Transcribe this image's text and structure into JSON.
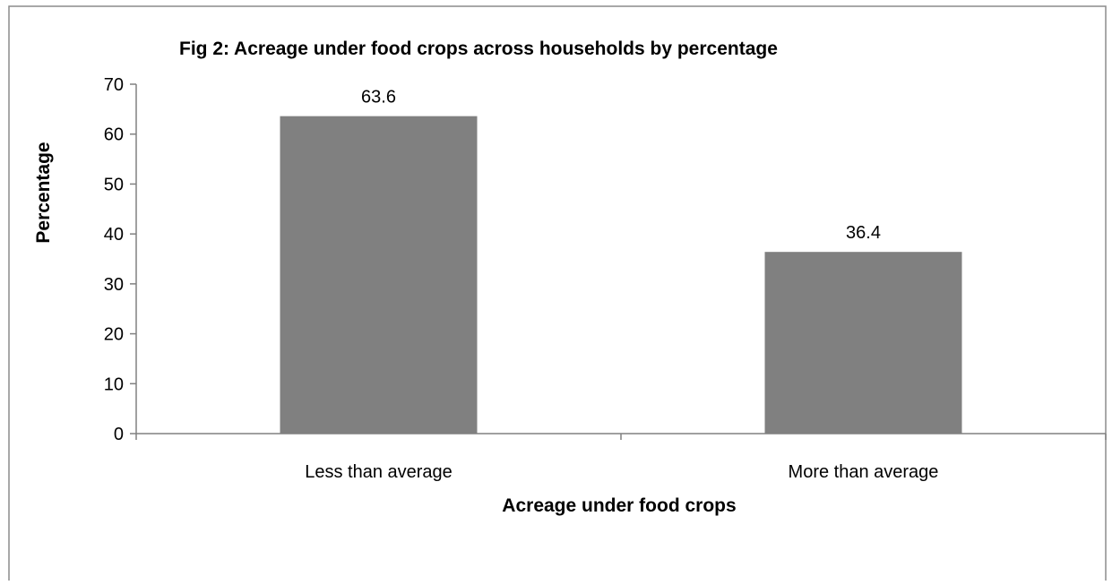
{
  "chart_data": {
    "type": "bar",
    "title": "Fig 2: Acreage under food crops across households by percentage",
    "xlabel": "Acreage under food crops",
    "ylabel": "Percentage",
    "categories": [
      "Less than average",
      "More than average"
    ],
    "values": [
      63.6,
      36.4
    ],
    "data_labels": [
      "63.6",
      "36.4"
    ],
    "ylim": [
      0,
      70
    ],
    "yticks": [
      0,
      10,
      20,
      30,
      40,
      50,
      60,
      70
    ],
    "ytick_labels": [
      "0",
      "10",
      "20",
      "30",
      "40",
      "50",
      "60",
      "70"
    ],
    "grid": false,
    "legend": "none",
    "colors": {
      "bar": "#808080",
      "axis": "#808080",
      "border": "#8c8c8c",
      "text": "#000000"
    }
  }
}
